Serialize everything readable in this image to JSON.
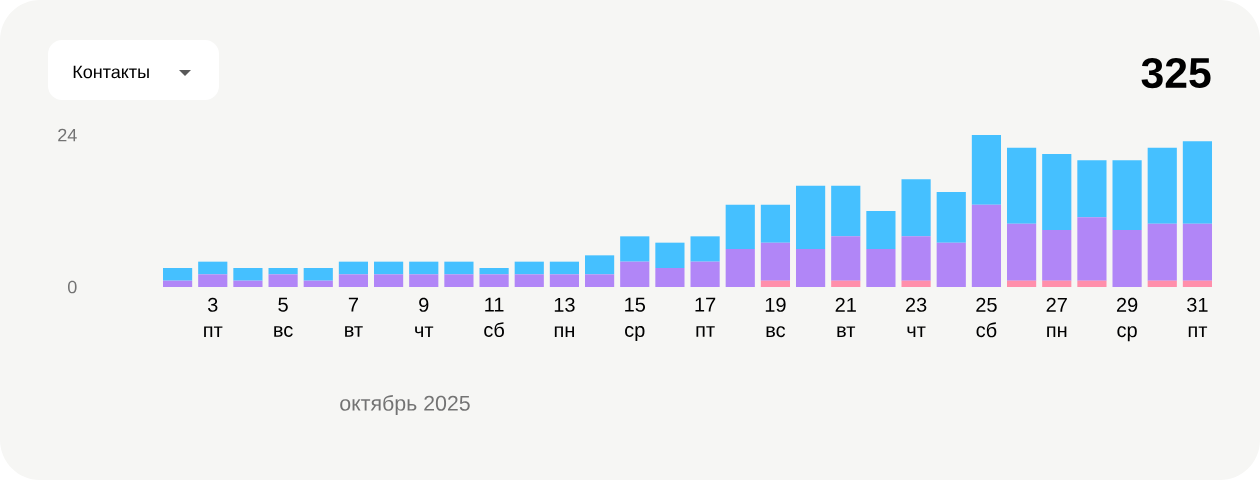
{
  "chart_data": {
    "type": "bar",
    "title": "Контакты",
    "xlabel": "октябрь 2025",
    "annotations": [
      "325"
    ],
    "stacked": true,
    "categories": [
      null,
      "3 пт",
      null,
      "5 вс",
      null,
      "7 вт",
      null,
      "9 чт",
      null,
      "11 сб",
      null,
      "13 пн",
      null,
      "15 ср",
      null,
      "17 пт",
      null,
      "19 вс",
      null,
      "21 вт",
      null,
      "23 чт",
      null,
      "25 сб",
      null,
      "27 пн",
      null,
      "29 ср",
      null,
      "31 пт"
    ],
    "series": [
      {
        "color": "#ff8fab",
        "values": [
          0,
          0,
          0,
          0,
          0,
          0,
          0,
          0,
          0,
          0,
          0,
          0,
          0,
          0,
          0,
          0,
          0,
          1,
          0,
          1,
          0,
          1,
          0,
          0,
          1,
          1,
          1,
          0,
          1,
          1
        ]
      },
      {
        "color": "#b186f7",
        "values": [
          1,
          2,
          1,
          2,
          1,
          2,
          2,
          2,
          2,
          2,
          2,
          2,
          2,
          4,
          3,
          4,
          6,
          6,
          6,
          7,
          6,
          7,
          7,
          13,
          9,
          8,
          10,
          9,
          9,
          9
        ]
      },
      {
        "color": "#45c0ff",
        "values": [
          2,
          2,
          2,
          1,
          2,
          2,
          2,
          2,
          2,
          1,
          2,
          2,
          3,
          4,
          4,
          4,
          7,
          6,
          10,
          8,
          6,
          9,
          8,
          11,
          12,
          12,
          9,
          11,
          12,
          13
        ]
      }
    ],
    "ylim": [
      0,
      24
    ],
    "yticks": [
      0,
      24
    ]
  }
}
